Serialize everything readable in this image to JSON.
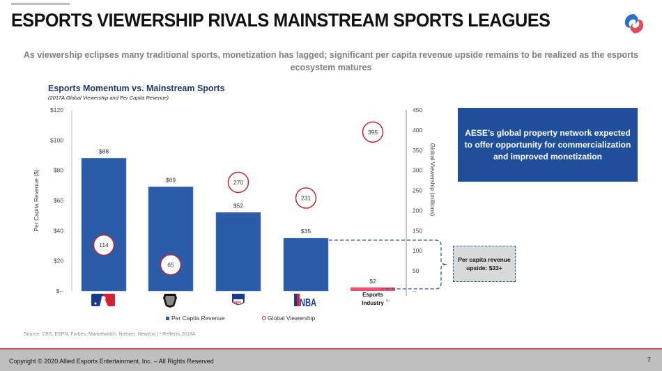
{
  "slide": {
    "title": "ESPORTS VIEWERSHIP RIVALS MAINSTREAM SPORTS LEAGUES",
    "subtitle": "As viewership eclipses many traditional sports, monetization has lagged; significant per capita revenue upside remains to be realized as the esports ecosystem matures",
    "logo_icon": "allied-esports-logo-icon",
    "info_box": "AESE’s global property network expected to offer opportunity for commercialization and improved monetization",
    "upside_box": "Per capita revenue upside: $33+",
    "source": "Source: CBS, ESPN, Forbes, Marketwatch, Nielsen, Newzoo  |  ¹ Reflects 2018A",
    "copyright": "Copyright © 2020 Allied Esports Entertainment, Inc. – All Rights Reserved",
    "page_number": "7"
  },
  "chart_data": {
    "type": "bar",
    "title": "Esports Momentum vs. Mainstream Sports",
    "subtitle": "(2017A Global Viewership and Per Capita Revenue)",
    "categories": [
      "MLB",
      "NHL",
      "NFL",
      "NBA",
      "Esports Industry"
    ],
    "category_icons": [
      "mlb-logo-icon",
      "nhl-logo-icon",
      "nfl-logo-icon",
      "nba-logo-icon",
      null
    ],
    "category_label_text": {
      "esports": "Esports",
      "esports_line2": "Industry",
      "footnote": "(1)"
    },
    "nba_logo_text": "NBA",
    "nfl_logo_text": "NFL",
    "series": [
      {
        "name": "Per Capita Revenue",
        "axis": "left",
        "values": [
          88,
          69,
          52,
          35,
          2
        ],
        "labels": [
          "$88",
          "$69",
          "$52",
          "$35",
          "$2"
        ],
        "color": "#2a5caa",
        "highlight_color": "#f0506e"
      },
      {
        "name": "Global Viewership",
        "axis": "right",
        "values": [
          114,
          65,
          270,
          231,
          395
        ],
        "labels": [
          "114",
          "65",
          "270",
          "231",
          "395"
        ],
        "color": "#c0272d"
      }
    ],
    "ylabel": "Per Capita Revenue ($)",
    "y2label": "Global Viewership (millions)",
    "ylim": [
      0,
      120
    ],
    "y2lim": [
      0,
      450
    ],
    "yticks": [
      "$--",
      "$20",
      "$40",
      "$60",
      "$80",
      "$100",
      "$120"
    ],
    "y2ticks": [
      "--",
      "50",
      "100",
      "150",
      "200",
      "250",
      "300",
      "350",
      "400",
      "450"
    ],
    "legend": [
      "Per Capita Revenue",
      "Global Viewership"
    ],
    "legend_position": "bottom"
  }
}
